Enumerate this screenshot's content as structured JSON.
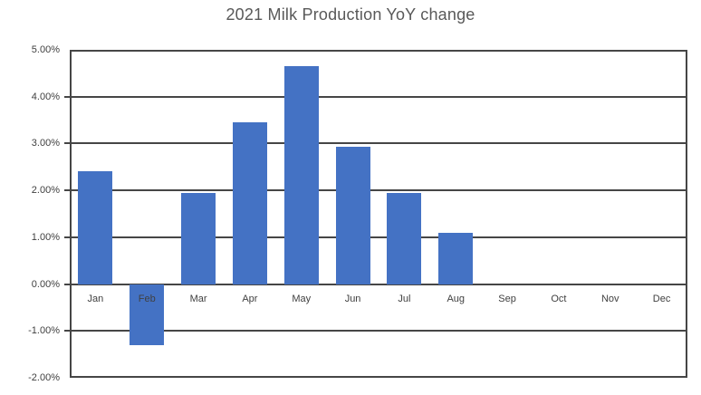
{
  "chart_data": {
    "type": "bar",
    "title": "2021 Milk Production YoY change",
    "categories": [
      "Jan",
      "Feb",
      "Mar",
      "Apr",
      "May",
      "Jun",
      "Jul",
      "Aug",
      "Sep",
      "Oct",
      "Nov",
      "Dec"
    ],
    "values": [
      2.4,
      -1.3,
      1.95,
      3.45,
      4.65,
      2.93,
      1.95,
      1.1,
      null,
      null,
      null,
      null
    ],
    "unit": "percent",
    "xlabel": "",
    "ylabel": "",
    "y_tick_labels": [
      "5.00%",
      "4.00%",
      "3.00%",
      "2.00%",
      "1.00%",
      "0.00%",
      "-1.00%",
      "-2.00%"
    ],
    "y_tick_values": [
      5,
      4,
      3,
      2,
      1,
      0,
      -1,
      -2
    ],
    "ylim": [
      -2,
      5
    ],
    "grid": true,
    "legend": "none",
    "bar_color": "#4472C4",
    "gridline_color": "#464646",
    "title_color": "#595959",
    "axis_label_color": "#404040"
  }
}
